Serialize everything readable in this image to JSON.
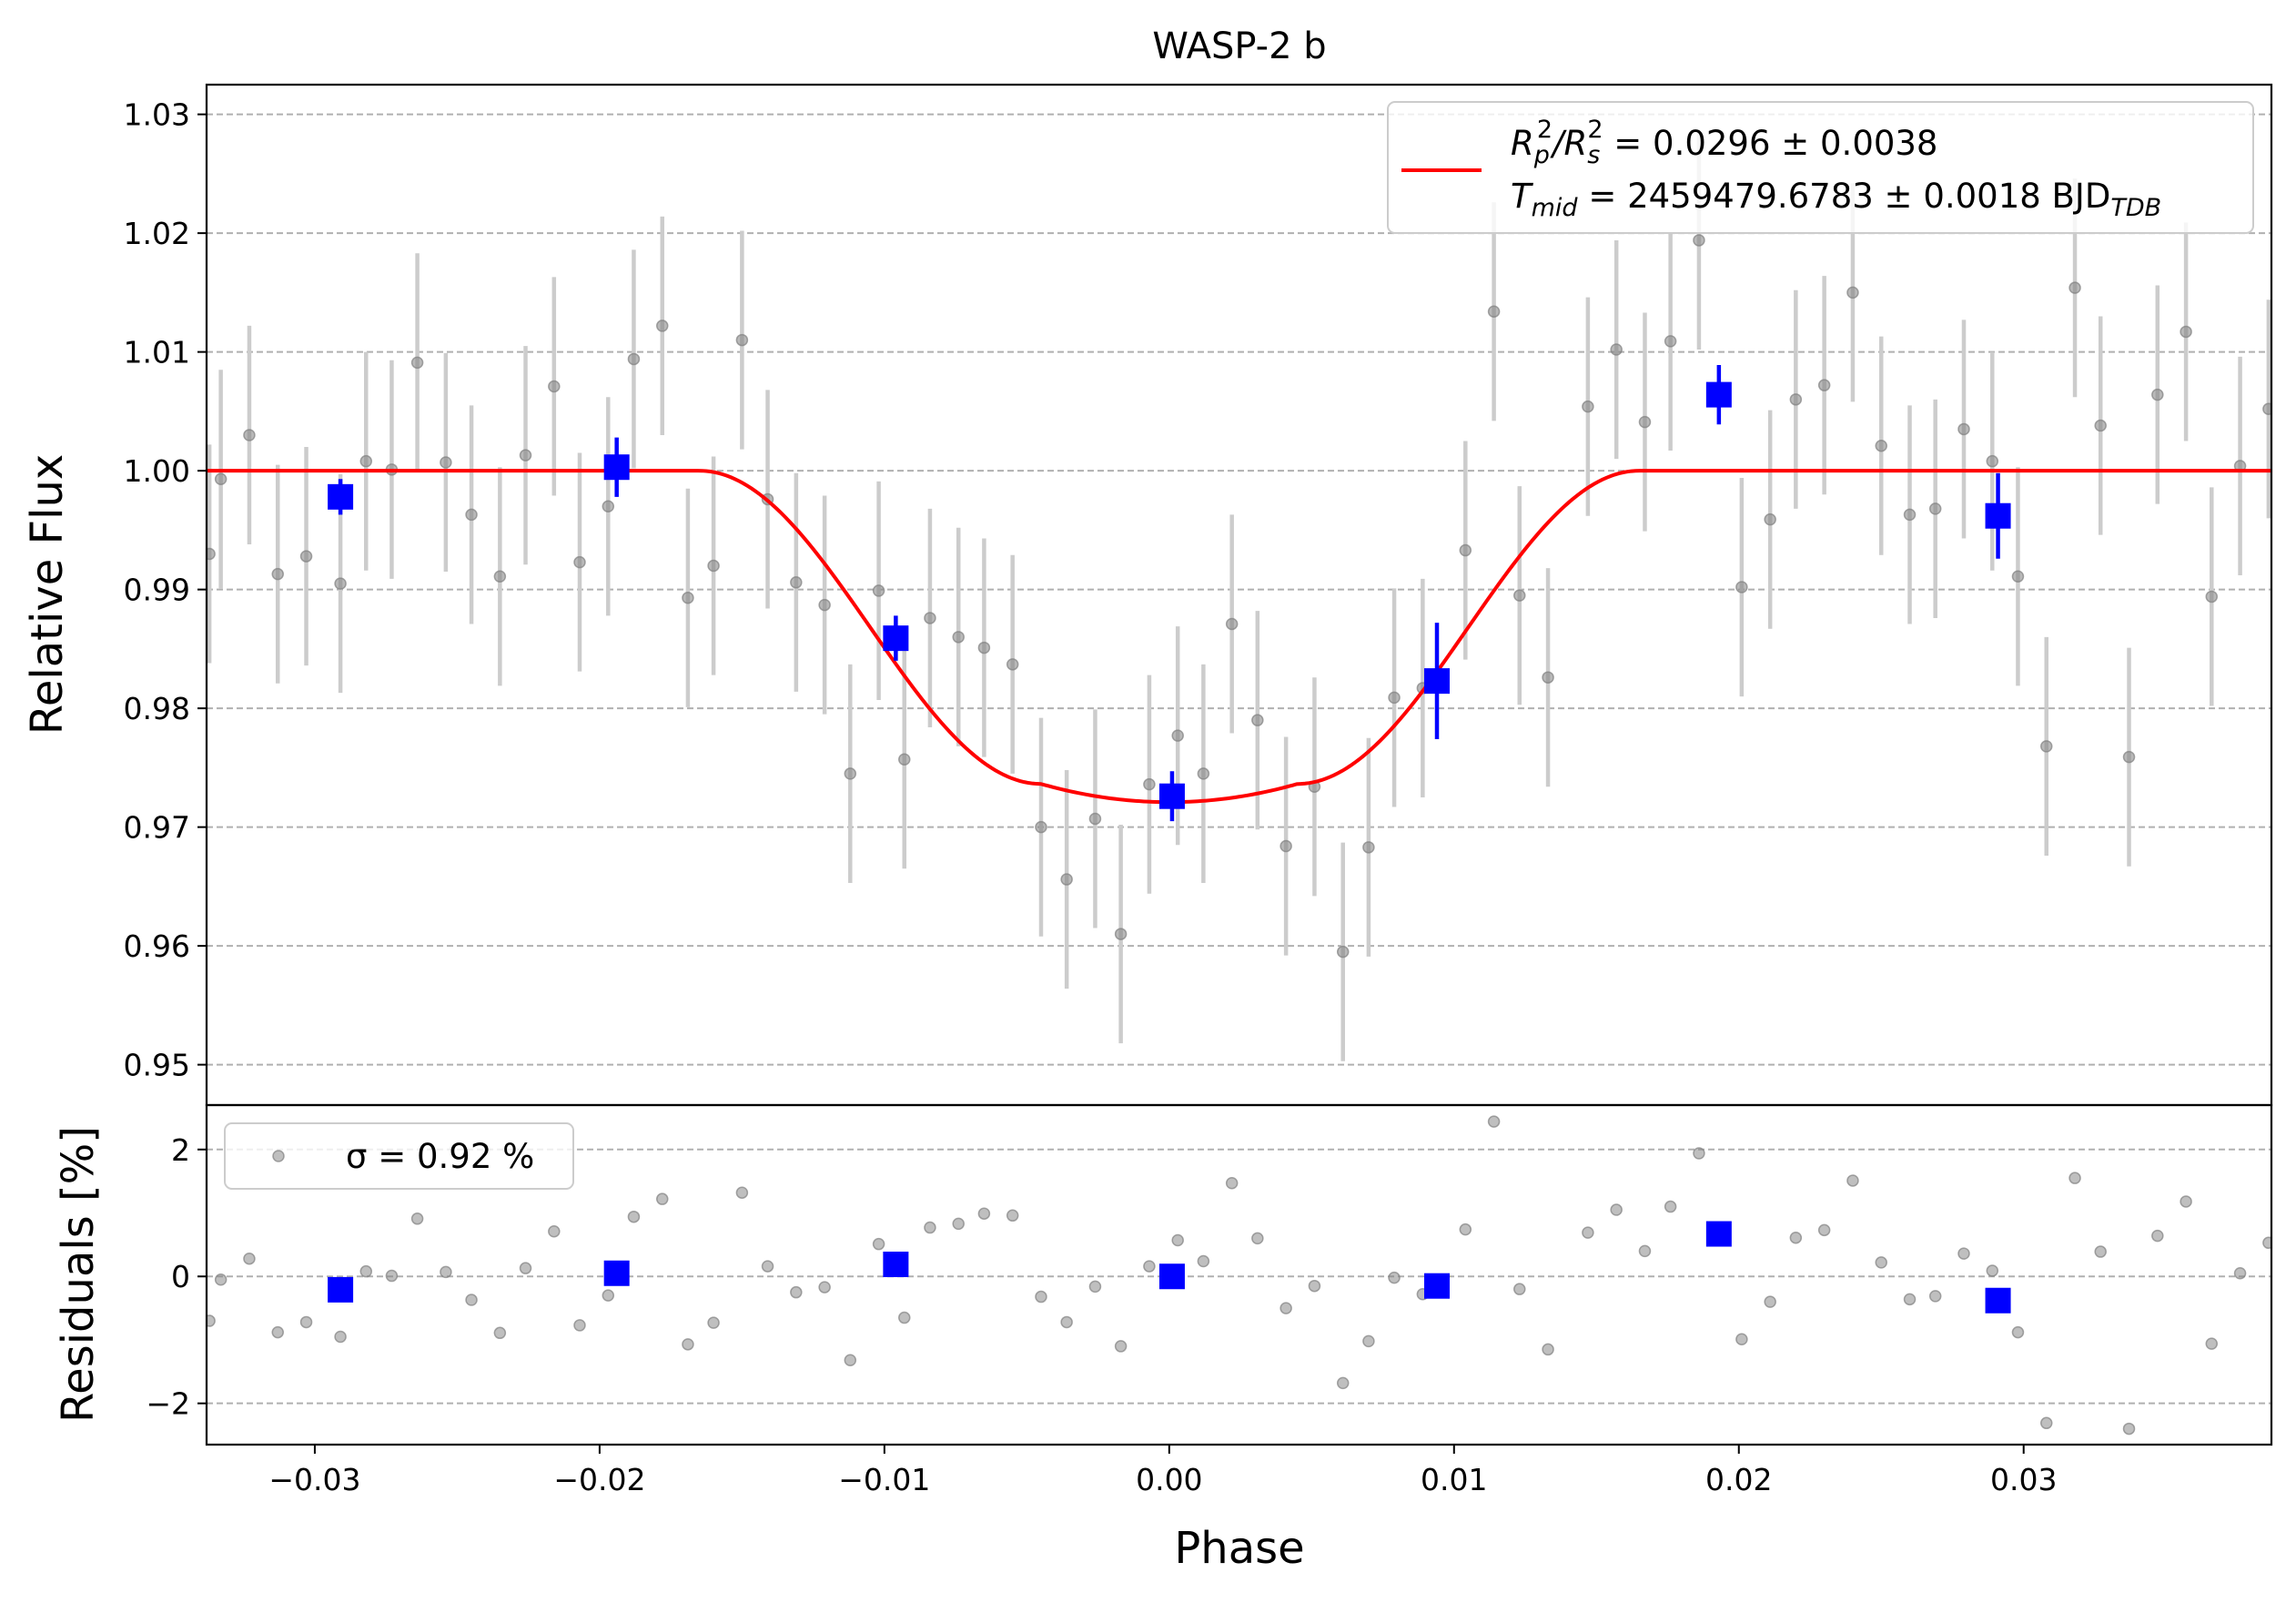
{
  "chart_data": {
    "type": "scatter",
    "title": "WASP-2 b",
    "xlabel": "Phase",
    "xlim": [
      -0.0338,
      0.0387
    ],
    "xticks": [
      -0.03,
      -0.02,
      -0.01,
      0.0,
      0.01,
      0.02,
      0.03
    ],
    "xtick_labels": [
      "−0.03",
      "−0.02",
      "−0.01",
      "0.00",
      "0.01",
      "0.02",
      "0.03"
    ],
    "grid": "horizontal dashed",
    "top_panel": {
      "ylabel": "Relative Flux",
      "ylim": [
        0.9466,
        1.0325
      ],
      "yticks": [
        0.95,
        0.96,
        0.97,
        0.98,
        0.99,
        1.0,
        1.01,
        1.02,
        1.03
      ],
      "ytick_labels": [
        "0.95",
        "0.96",
        "0.97",
        "0.98",
        "0.99",
        "1.00",
        "1.01",
        "1.02",
        "1.03"
      ],
      "legend": {
        "placement": "upper right",
        "line1_prefix": "R",
        "line1_sub1": "p",
        "line1_sup1": "2",
        "line1_slash": "/R",
        "line1_sub2": "s",
        "line1_sup2": "2",
        "line1_value": " = 0.0296 ± 0.0038",
        "line2_prefix": "T",
        "line2_sub": "mid",
        "line2_value": " = 2459479.6783 ± 0.0018 BJD",
        "line2_unit_sub": "TDB"
      },
      "series": [
        {
          "kind": "model",
          "color": "#ff0000",
          "params": {
            "depth": 0.0279,
            "t1": 0.0165,
            "t2": 0.0045
          }
        },
        {
          "kind": "data",
          "color": "#808080",
          "errorbar_color": "#cccccc",
          "yerr": 0.0092,
          "points": [
            [
              -0.0337,
              0.993
            ],
            [
              -0.0333,
              0.9993
            ],
            [
              -0.0323,
              1.003
            ],
            [
              -0.0313,
              0.9913
            ],
            [
              -0.0303,
              0.9928
            ],
            [
              -0.0291,
              0.9905
            ],
            [
              -0.0282,
              1.0008
            ],
            [
              -0.0273,
              1.0001
            ],
            [
              -0.0264,
              1.0091
            ],
            [
              -0.0254,
              1.0007
            ],
            [
              -0.0245,
              0.9963
            ],
            [
              -0.0235,
              0.9911
            ],
            [
              -0.0226,
              1.0013
            ],
            [
              -0.0216,
              1.0071
            ],
            [
              -0.0207,
              0.9923
            ],
            [
              -0.0197,
              0.997
            ],
            [
              -0.0188,
              1.0094
            ],
            [
              -0.0178,
              1.0122
            ],
            [
              -0.0169,
              0.9893
            ],
            [
              -0.016,
              0.992
            ],
            [
              -0.015,
              1.011
            ],
            [
              -0.0141,
              0.9976
            ],
            [
              -0.0131,
              0.9906
            ],
            [
              -0.0121,
              0.9887
            ],
            [
              -0.0112,
              0.9745
            ],
            [
              -0.0102,
              0.9899
            ],
            [
              -0.0093,
              0.9757
            ],
            [
              -0.0084,
              0.9876
            ],
            [
              -0.0074,
              0.986
            ],
            [
              -0.0065,
              0.9851
            ],
            [
              -0.0055,
              0.9837
            ],
            [
              -0.0045,
              0.97
            ],
            [
              -0.0036,
              0.9656
            ],
            [
              -0.0026,
              0.9707
            ],
            [
              -0.0017,
              0.961
            ],
            [
              -0.0007,
              0.9736
            ],
            [
              0.0003,
              0.9777
            ],
            [
              0.0012,
              0.9745
            ],
            [
              0.0022,
              0.9871
            ],
            [
              0.0031,
              0.979
            ],
            [
              0.0041,
              0.9684
            ],
            [
              0.0051,
              0.9734
            ],
            [
              0.0061,
              0.9595
            ],
            [
              0.007,
              0.9683
            ],
            [
              0.0079,
              0.9809
            ],
            [
              0.0089,
              0.9817
            ],
            [
              0.0104,
              0.9933
            ],
            [
              0.0114,
              1.0134
            ],
            [
              0.0123,
              0.9895
            ],
            [
              0.0133,
              0.9826
            ],
            [
              0.0147,
              1.0054
            ],
            [
              0.0157,
              1.0102
            ],
            [
              0.0167,
              1.0041
            ],
            [
              0.0176,
              1.0109
            ],
            [
              0.0186,
              1.0194
            ],
            [
              0.0201,
              0.9902
            ],
            [
              0.0211,
              0.9959
            ],
            [
              0.022,
              1.006
            ],
            [
              0.023,
              1.0072
            ],
            [
              0.024,
              1.015
            ],
            [
              0.025,
              1.0021
            ],
            [
              0.026,
              0.9963
            ],
            [
              0.0269,
              0.9968
            ],
            [
              0.0279,
              1.0035
            ],
            [
              0.0289,
              1.0008
            ],
            [
              0.0298,
              0.9911
            ],
            [
              0.0308,
              0.9768
            ],
            [
              0.0318,
              1.0154
            ],
            [
              0.0327,
              1.0038
            ],
            [
              0.0337,
              0.9759
            ],
            [
              0.0347,
              1.0064
            ],
            [
              0.0357,
              1.0117
            ],
            [
              0.0366,
              0.9894
            ],
            [
              0.0376,
              1.0004
            ],
            [
              0.0386,
              1.0052
            ]
          ]
        },
        {
          "kind": "binned",
          "color": "#0000ff",
          "points": [
            {
              "x": -0.0291,
              "y": 0.9978,
              "err": 0.0015
            },
            {
              "x": -0.0194,
              "y": 1.0003,
              "err": 0.0025
            },
            {
              "x": -0.0096,
              "y": 0.9859,
              "err": 0.0019
            },
            {
              "x": 0.0001,
              "y": 0.9726,
              "err": 0.0021
            },
            {
              "x": 0.0094,
              "y": 0.9823,
              "err": 0.0049
            },
            {
              "x": 0.0193,
              "y": 1.0064,
              "err": 0.0025
            },
            {
              "x": 0.0291,
              "y": 0.9962,
              "err": 0.0036
            }
          ]
        }
      ]
    },
    "bottom_panel": {
      "ylabel": "Residuals [%]",
      "ylim": [
        -2.65,
        2.7
      ],
      "yticks": [
        -2,
        0,
        2
      ],
      "ytick_labels": [
        "−2",
        "0",
        "2"
      ],
      "legend": {
        "placement": "upper left",
        "label": "σ = 0.92 %"
      },
      "residual_points": [
        [
          -0.0337,
          -0.7
        ],
        [
          -0.0333,
          -0.05
        ],
        [
          -0.0323,
          0.28
        ],
        [
          -0.0313,
          -0.88
        ],
        [
          -0.0303,
          -0.72
        ],
        [
          -0.0291,
          -0.95
        ],
        [
          -0.0282,
          0.08
        ],
        [
          -0.0273,
          0.01
        ],
        [
          -0.0264,
          0.91
        ],
        [
          -0.0254,
          0.07
        ],
        [
          -0.0245,
          -0.37
        ],
        [
          -0.0235,
          -0.89
        ],
        [
          -0.0226,
          0.13
        ],
        [
          -0.0216,
          0.71
        ],
        [
          -0.0207,
          -0.77
        ],
        [
          -0.0197,
          -0.3
        ],
        [
          -0.0188,
          0.94
        ],
        [
          -0.0178,
          1.22
        ],
        [
          -0.0169,
          -1.07
        ],
        [
          -0.016,
          -0.73
        ],
        [
          -0.015,
          1.32
        ],
        [
          -0.0141,
          0.16
        ],
        [
          -0.0131,
          -0.25
        ],
        [
          -0.0121,
          -0.17
        ],
        [
          -0.0112,
          -1.32
        ],
        [
          -0.0102,
          0.51
        ],
        [
          -0.0093,
          -0.65
        ],
        [
          -0.0084,
          0.77
        ],
        [
          -0.0074,
          0.83
        ],
        [
          -0.0065,
          0.99
        ],
        [
          -0.0055,
          0.96
        ],
        [
          -0.0045,
          -0.32
        ],
        [
          -0.0036,
          -0.72
        ],
        [
          -0.0026,
          -0.16
        ],
        [
          -0.0017,
          -1.1
        ],
        [
          -0.0007,
          0.16
        ],
        [
          0.0003,
          0.57
        ],
        [
          0.0012,
          0.24
        ],
        [
          0.0022,
          1.47
        ],
        [
          0.0031,
          0.6
        ],
        [
          0.0041,
          -0.5
        ],
        [
          0.0051,
          -0.15
        ],
        [
          0.0061,
          -1.68
        ],
        [
          0.007,
          -1.02
        ],
        [
          0.0079,
          -0.02
        ],
        [
          0.0089,
          -0.28
        ],
        [
          0.0104,
          0.74
        ],
        [
          0.0114,
          2.44
        ],
        [
          0.0123,
          -0.2
        ],
        [
          0.0133,
          -1.15
        ],
        [
          0.0147,
          0.69
        ],
        [
          0.0157,
          1.05
        ],
        [
          0.0167,
          0.4
        ],
        [
          0.0176,
          1.1
        ],
        [
          0.0186,
          1.94
        ],
        [
          0.0201,
          -0.99
        ],
        [
          0.0211,
          -0.4
        ],
        [
          0.022,
          0.61
        ],
        [
          0.023,
          0.73
        ],
        [
          0.024,
          1.51
        ],
        [
          0.025,
          0.22
        ],
        [
          0.026,
          -0.36
        ],
        [
          0.0269,
          -0.31
        ],
        [
          0.0279,
          0.36
        ],
        [
          0.0289,
          0.09
        ],
        [
          0.0298,
          -0.88
        ],
        [
          0.0308,
          -2.31
        ],
        [
          0.0318,
          1.55
        ],
        [
          0.0327,
          0.39
        ],
        [
          0.0337,
          -2.4
        ],
        [
          0.0347,
          0.64
        ],
        [
          0.0357,
          1.18
        ],
        [
          0.0366,
          -1.06
        ],
        [
          0.0376,
          0.05
        ],
        [
          0.0386,
          0.53
        ]
      ],
      "binned_points": [
        [
          -0.0291,
          -0.21
        ],
        [
          -0.0194,
          0.05
        ],
        [
          -0.0096,
          0.19
        ],
        [
          0.0001,
          0.0
        ],
        [
          0.0094,
          -0.15
        ],
        [
          0.0193,
          0.67
        ],
        [
          0.0291,
          -0.38
        ]
      ]
    }
  }
}
